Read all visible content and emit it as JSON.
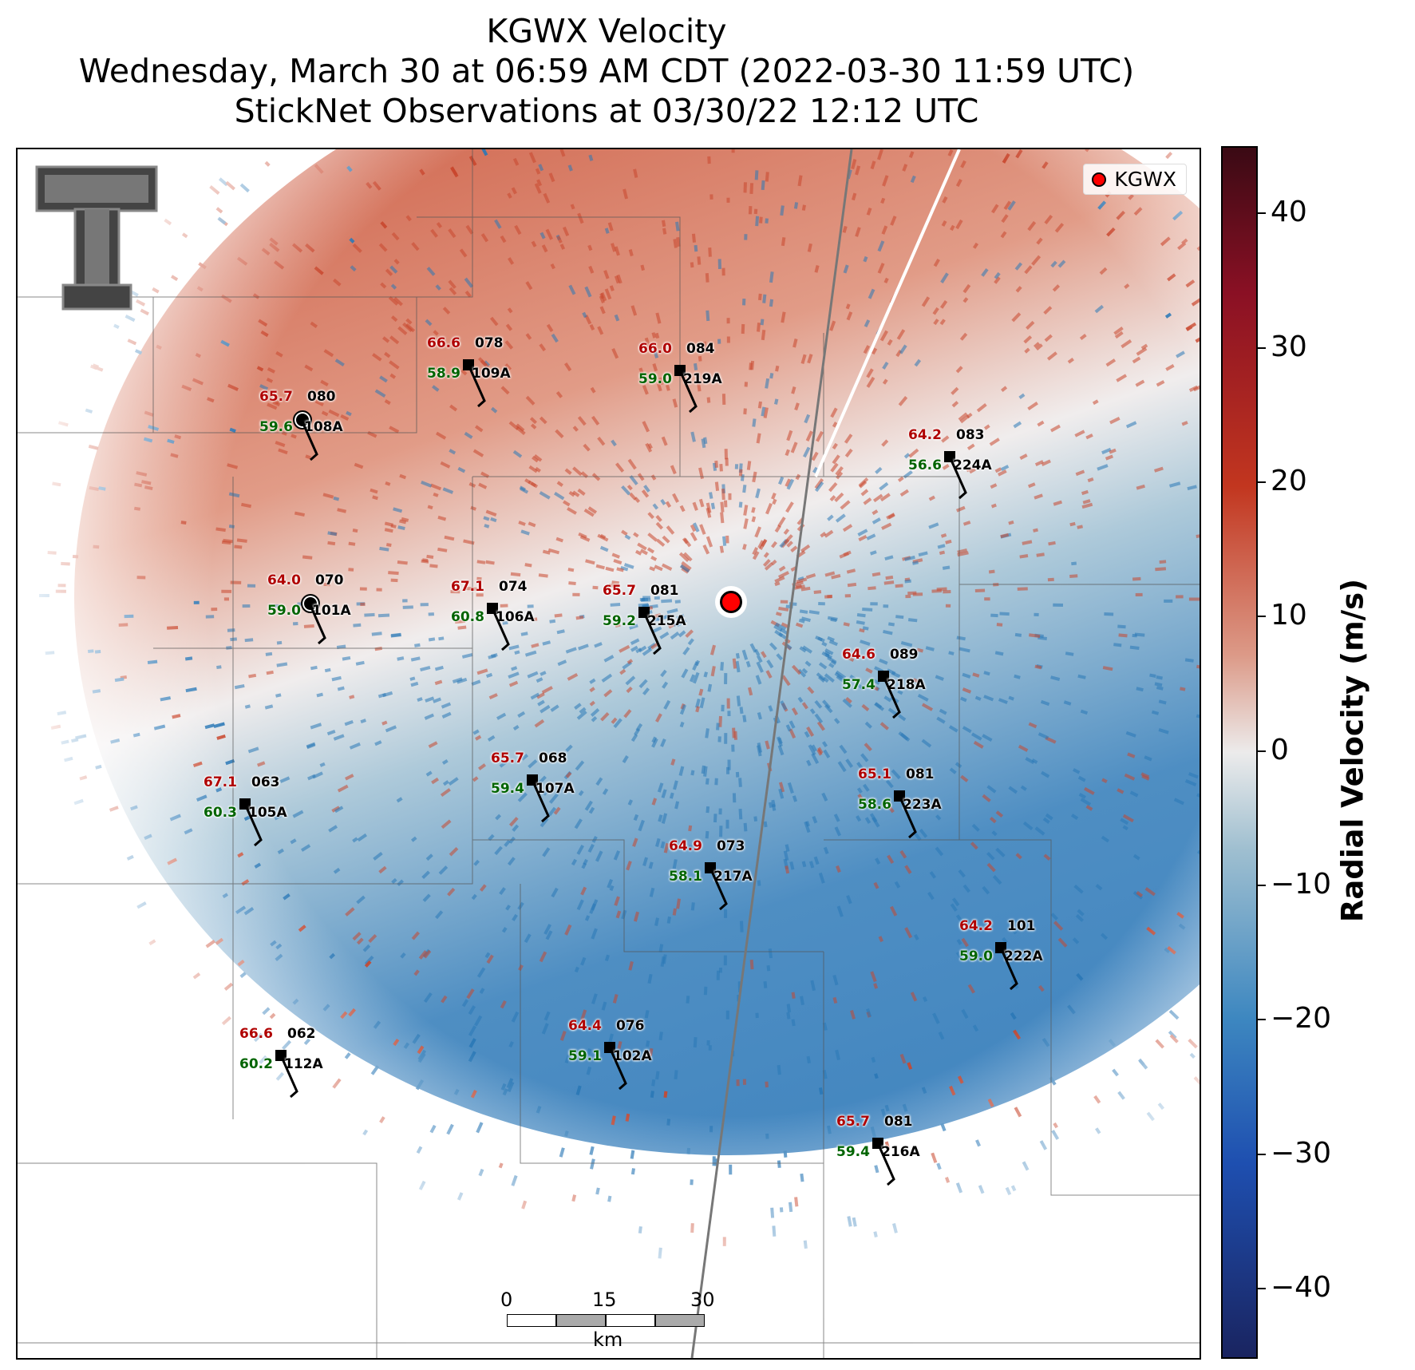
{
  "title": {
    "line1": "KGWX Velocity",
    "line2": "Wednesday, March 30 at 06:59 AM CDT (2022-03-30 11:59 UTC)",
    "line3": "StickNet Observations at 03/30/22 12:12 UTC"
  },
  "legend": {
    "label": "KGWX",
    "color": "#ff0000"
  },
  "colorbar": {
    "title": "Radial Velocity (m/s)",
    "ticks": [
      "40",
      "30",
      "20",
      "10",
      "0",
      "−10",
      "−20",
      "−30",
      "−40"
    ],
    "range": [
      -45,
      45
    ]
  },
  "scalebar": {
    "ticks": [
      "0",
      "15",
      "30"
    ],
    "unit": "km"
  },
  "colors": {
    "temperature": "#b00000",
    "dewpoint": "#006400",
    "positive_velocity": "#c23a22",
    "negative_velocity": "#1f6fb4"
  },
  "stations": [
    {
      "t": "66.6",
      "d": "58.9",
      "dir": "078",
      "id": "109A",
      "marker": "square"
    },
    {
      "t": "66.0",
      "d": "59.0",
      "dir": "084",
      "id": "219A",
      "marker": "square"
    },
    {
      "t": "65.7",
      "d": "59.6",
      "dir": "080",
      "id": "108A",
      "marker": "circle"
    },
    {
      "t": "64.2",
      "d": "56.6",
      "dir": "083",
      "id": "224A",
      "marker": "square"
    },
    {
      "t": "64.0",
      "d": "59.0",
      "dir": "070",
      "id": "101A",
      "marker": "circle"
    },
    {
      "t": "67.1",
      "d": "60.8",
      "dir": "074",
      "id": "106A",
      "marker": "square"
    },
    {
      "t": "65.7",
      "d": "59.2",
      "dir": "081",
      "id": "215A",
      "marker": "square"
    },
    {
      "t": "64.6",
      "d": "57.4",
      "dir": "089",
      "id": "218A",
      "marker": "square"
    },
    {
      "t": "65.7",
      "d": "59.4",
      "dir": "068",
      "id": "107A",
      "marker": "square"
    },
    {
      "t": "65.1",
      "d": "58.6",
      "dir": "081",
      "id": "223A",
      "marker": "square"
    },
    {
      "t": "67.1",
      "d": "60.3",
      "dir": "063",
      "id": "105A",
      "marker": "square"
    },
    {
      "t": "64.9",
      "d": "58.1",
      "dir": "073",
      "id": "217A",
      "marker": "square"
    },
    {
      "t": "64.2",
      "d": "59.0",
      "dir": "101",
      "id": "222A",
      "marker": "square"
    },
    {
      "t": "66.6",
      "d": "60.2",
      "dir": "062",
      "id": "112A",
      "marker": "square"
    },
    {
      "t": "64.4",
      "d": "59.1",
      "dir": "076",
      "id": "102A",
      "marker": "square"
    },
    {
      "t": "65.7",
      "d": "59.4",
      "dir": "081",
      "id": "216A",
      "marker": "square"
    }
  ]
}
